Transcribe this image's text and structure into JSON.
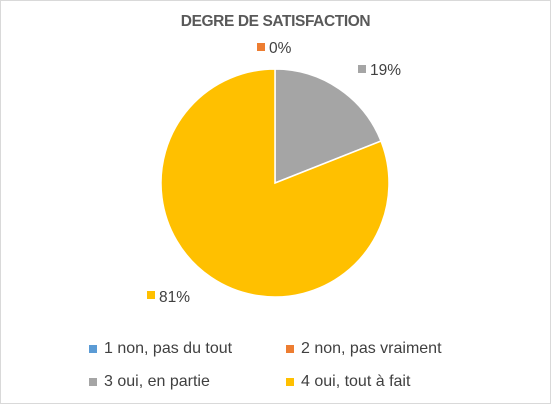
{
  "chart_data": {
    "type": "pie",
    "title": "DEGRE DE SATISFACTION",
    "categories": [
      "1 non, pas du tout",
      "2 non, pas vraiment",
      "3 oui, en partie",
      "4 oui, tout à fait"
    ],
    "values": [
      0,
      0,
      19,
      81
    ],
    "labels": [
      "",
      "0%",
      "19%",
      "81%"
    ],
    "colors": [
      "#5B9BD5",
      "#ED7D31",
      "#A5A5A5",
      "#FFC000"
    ],
    "start_angle_deg": 0,
    "direction": "clockwise",
    "legend_position": "bottom"
  }
}
